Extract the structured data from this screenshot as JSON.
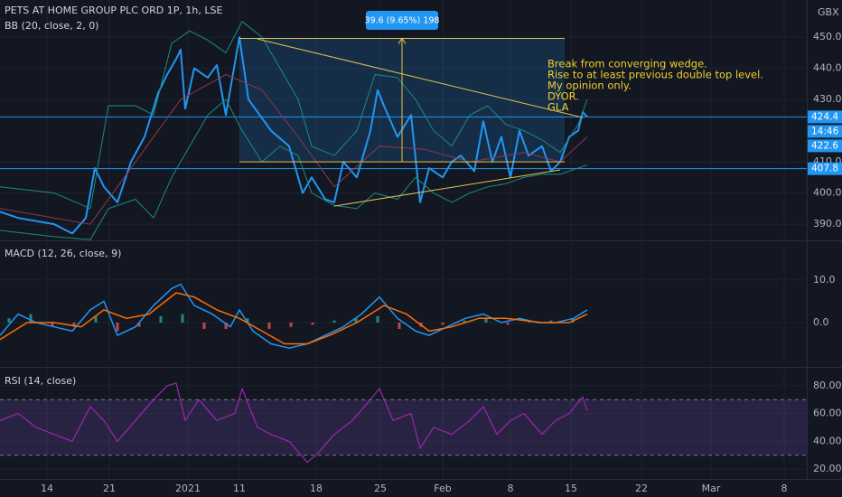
{
  "chart_data": [
    {
      "type": "line",
      "title": "PETS AT HOME GROUP PLC ORD 1P, 1h, LSE",
      "subtitle": "BB (20, close, 2, 0)",
      "unit": "GBX",
      "ylim": [
        385.1,
        461.9
      ],
      "yticks": [
        {
          "value": 390,
          "label": "390.0"
        },
        {
          "value": 400,
          "label": "400.0"
        },
        {
          "value": 410,
          "label": "410.0"
        },
        {
          "value": 430,
          "label": "430.0"
        },
        {
          "value": 440,
          "label": "440.0"
        },
        {
          "value": 450,
          "label": "450.0"
        }
      ],
      "grid": true,
      "series": [
        {
          "color": "#2196f3",
          "width": 2,
          "x": [
            0,
            20,
            40,
            60,
            80,
            95,
            105,
            115,
            130,
            145,
            160,
            175,
            185,
            195,
            200,
            205,
            215,
            230,
            240,
            250,
            265,
            275,
            300,
            320,
            335,
            345,
            360,
            370,
            380,
            395,
            410,
            418,
            425,
            440,
            455,
            465,
            475,
            490,
            500,
            510,
            525,
            535,
            545,
            555,
            565,
            575,
            585,
            600,
            610,
            620,
            630,
            640,
            645,
            650
          ],
          "values": [
            394,
            392,
            391,
            390,
            387,
            392,
            408,
            402,
            397,
            410,
            418,
            432,
            438,
            443,
            446,
            427,
            440,
            437,
            441,
            425,
            450,
            430,
            420,
            415,
            400,
            405,
            398,
            397,
            410,
            405,
            420,
            433,
            428,
            418,
            425,
            397,
            408,
            405,
            410,
            412,
            407,
            423,
            410,
            418,
            405,
            420,
            412,
            415,
            407,
            410,
            418,
            420,
            426,
            424.4
          ]
        },
        {
          "color": "#1c8c80",
          "width": 1,
          "x": [
            0,
            60,
            100,
            120,
            150,
            170,
            190,
            210,
            230,
            250,
            268,
            290,
            310,
            330,
            345,
            370,
            395,
            415,
            440,
            460,
            480,
            500,
            520,
            540,
            560,
            580,
            600,
            620,
            640,
            650
          ],
          "values": [
            402,
            400,
            395,
            428,
            428,
            425,
            448,
            452,
            449,
            445,
            455,
            450,
            440,
            430,
            415,
            412,
            420,
            438,
            437,
            430,
            420,
            415,
            425,
            428,
            422,
            420,
            417,
            413,
            422,
            430
          ]
        },
        {
          "color": "#1c8c80",
          "width": 1,
          "x": [
            0,
            60,
            100,
            120,
            150,
            170,
            190,
            210,
            230,
            250,
            268,
            290,
            310,
            330,
            345,
            370,
            395,
            415,
            440,
            460,
            480,
            500,
            520,
            540,
            560,
            580,
            600,
            620,
            640,
            650
          ],
          "values": [
            388,
            386,
            385,
            395,
            398,
            392,
            405,
            415,
            425,
            430,
            420,
            410,
            415,
            412,
            400,
            396,
            395,
            400,
            398,
            405,
            400,
            397,
            400,
            402,
            403,
            405,
            406,
            406,
            408,
            409
          ]
        },
        {
          "color": "#8c3848",
          "width": 1,
          "x": [
            0,
            100,
            150,
            200,
            250,
            290,
            330,
            370,
            420,
            470,
            520,
            580,
            620,
            650
          ],
          "values": [
            395,
            390,
            410,
            430,
            438,
            433,
            418,
            402,
            415,
            414,
            410,
            413,
            410,
            418
          ]
        }
      ],
      "price_lines": [
        424.4,
        407.8
      ],
      "price_tags": [
        {
          "value": 424.4,
          "label": "424.4"
        },
        {
          "label": "14:46"
        },
        {
          "value": 422.6,
          "label": "422.6"
        },
        {
          "value": 407.8,
          "label": "407.8"
        }
      ],
      "range": {
        "x": [
          265,
          625
        ],
        "from": 410,
        "to": 449.6,
        "label": "39.6 (9.65%) 198"
      },
      "trendlines": [
        {
          "x": [
            285,
            645
          ],
          "y": [
            449.4,
            424.2
          ]
        },
        {
          "x": [
            370,
            620
          ],
          "y": [
            395.8,
            407.4
          ]
        }
      ],
      "annotation": [
        "Break from converging wedge.",
        "Rise to at least previous double top level.",
        "My opinion only.",
        "DYOR.",
        "GLA"
      ]
    },
    {
      "type": "macd",
      "title": "MACD (12, 26, close, 9)",
      "ylim": [
        -10.2,
        18.9
      ],
      "yticks": [
        {
          "value": 0,
          "label": "0.0"
        },
        {
          "value": 10,
          "label": "10.0"
        }
      ],
      "grid": true,
      "colors": [
        "#26a69a",
        "#ef5350"
      ],
      "histogram": {
        "x": [
          10,
          34,
          58,
          82,
          106,
          130,
          154,
          178,
          202,
          226,
          250,
          274,
          298,
          322,
          346,
          370,
          394,
          418,
          442,
          466,
          490,
          514,
          538,
          562,
          586,
          610,
          634
        ],
        "values": [
          1,
          2,
          -1,
          -1,
          1.5,
          -2,
          -1,
          1.5,
          2,
          -1.5,
          -1.5,
          1,
          -1.5,
          -1,
          -0.5,
          0.5,
          1,
          1.5,
          -1.5,
          -1,
          -0.5,
          0.5,
          1,
          -0.5,
          0.5,
          0.5,
          1
        ]
      },
      "series": [
        {
          "color": "#2196f3",
          "width": 1.5,
          "x": [
            0,
            20,
            40,
            60,
            80,
            100,
            115,
            130,
            150,
            170,
            190,
            200,
            215,
            235,
            255,
            265,
            280,
            300,
            320,
            340,
            360,
            380,
            400,
            420,
            440,
            460,
            475,
            495,
            515,
            535,
            555,
            575,
            595,
            615,
            635,
            650
          ],
          "values": [
            -3,
            2,
            0,
            -1,
            -2,
            3,
            5,
            -3,
            -1,
            4,
            8,
            9,
            4,
            2,
            -1,
            3,
            -2,
            -5,
            -6,
            -5,
            -3,
            -1,
            2,
            6,
            1,
            -2,
            -3,
            -1,
            1,
            2,
            0,
            1,
            0,
            0,
            1,
            3
          ]
        },
        {
          "color": "#ff6d00",
          "width": 1.5,
          "x": [
            0,
            30,
            60,
            90,
            115,
            140,
            165,
            195,
            215,
            240,
            265,
            290,
            315,
            340,
            365,
            395,
            425,
            450,
            475,
            500,
            530,
            560,
            600,
            630,
            650
          ],
          "values": [
            -4,
            0,
            0,
            -1,
            3,
            1,
            2,
            7,
            6,
            3,
            1,
            -2,
            -5,
            -5,
            -3,
            0,
            4,
            2,
            -2,
            -1,
            1,
            1,
            0,
            0,
            2
          ]
        }
      ]
    },
    {
      "type": "rsi",
      "title": "RSI (14, close)",
      "ylim": [
        12.9,
        92.3
      ],
      "yticks": [
        {
          "value": 20,
          "label": "20.00"
        },
        {
          "value": 40,
          "label": "40.00"
        },
        {
          "value": 60,
          "label": "60.00"
        },
        {
          "value": 80,
          "label": "80.00"
        }
      ],
      "band": [
        30,
        70
      ],
      "grid": true,
      "xlim": [
        0,
        893
      ],
      "xticks": [
        {
          "value": 52,
          "label": "14"
        },
        {
          "value": 121,
          "label": "21"
        },
        {
          "value": 208,
          "label": "2021"
        },
        {
          "value": 265,
          "label": "11"
        },
        {
          "value": 350,
          "label": "18"
        },
        {
          "value": 421,
          "label": "25"
        },
        {
          "value": 490,
          "label": "Feb"
        },
        {
          "value": 565,
          "label": "8"
        },
        {
          "value": 632,
          "label": "15"
        },
        {
          "value": 710,
          "label": "22"
        },
        {
          "value": 787,
          "label": "Mar"
        },
        {
          "value": 868,
          "label": "8"
        }
      ],
      "series": [
        {
          "color": "#9c27b0",
          "width": 1.2,
          "x": [
            0,
            20,
            40,
            60,
            80,
            100,
            115,
            130,
            150,
            170,
            185,
            195,
            205,
            220,
            240,
            260,
            268,
            285,
            300,
            320,
            340,
            350,
            370,
            390,
            410,
            420,
            435,
            455,
            465,
            480,
            500,
            520,
            535,
            550,
            565,
            580,
            600,
            615,
            630,
            645,
            650
          ],
          "values": [
            55,
            60,
            50,
            45,
            40,
            65,
            55,
            40,
            55,
            70,
            80,
            82,
            55,
            70,
            55,
            60,
            78,
            50,
            45,
            40,
            25,
            30,
            45,
            55,
            70,
            78,
            55,
            60,
            35,
            50,
            45,
            55,
            65,
            45,
            55,
            60,
            45,
            55,
            60,
            72,
            62
          ]
        }
      ]
    }
  ]
}
